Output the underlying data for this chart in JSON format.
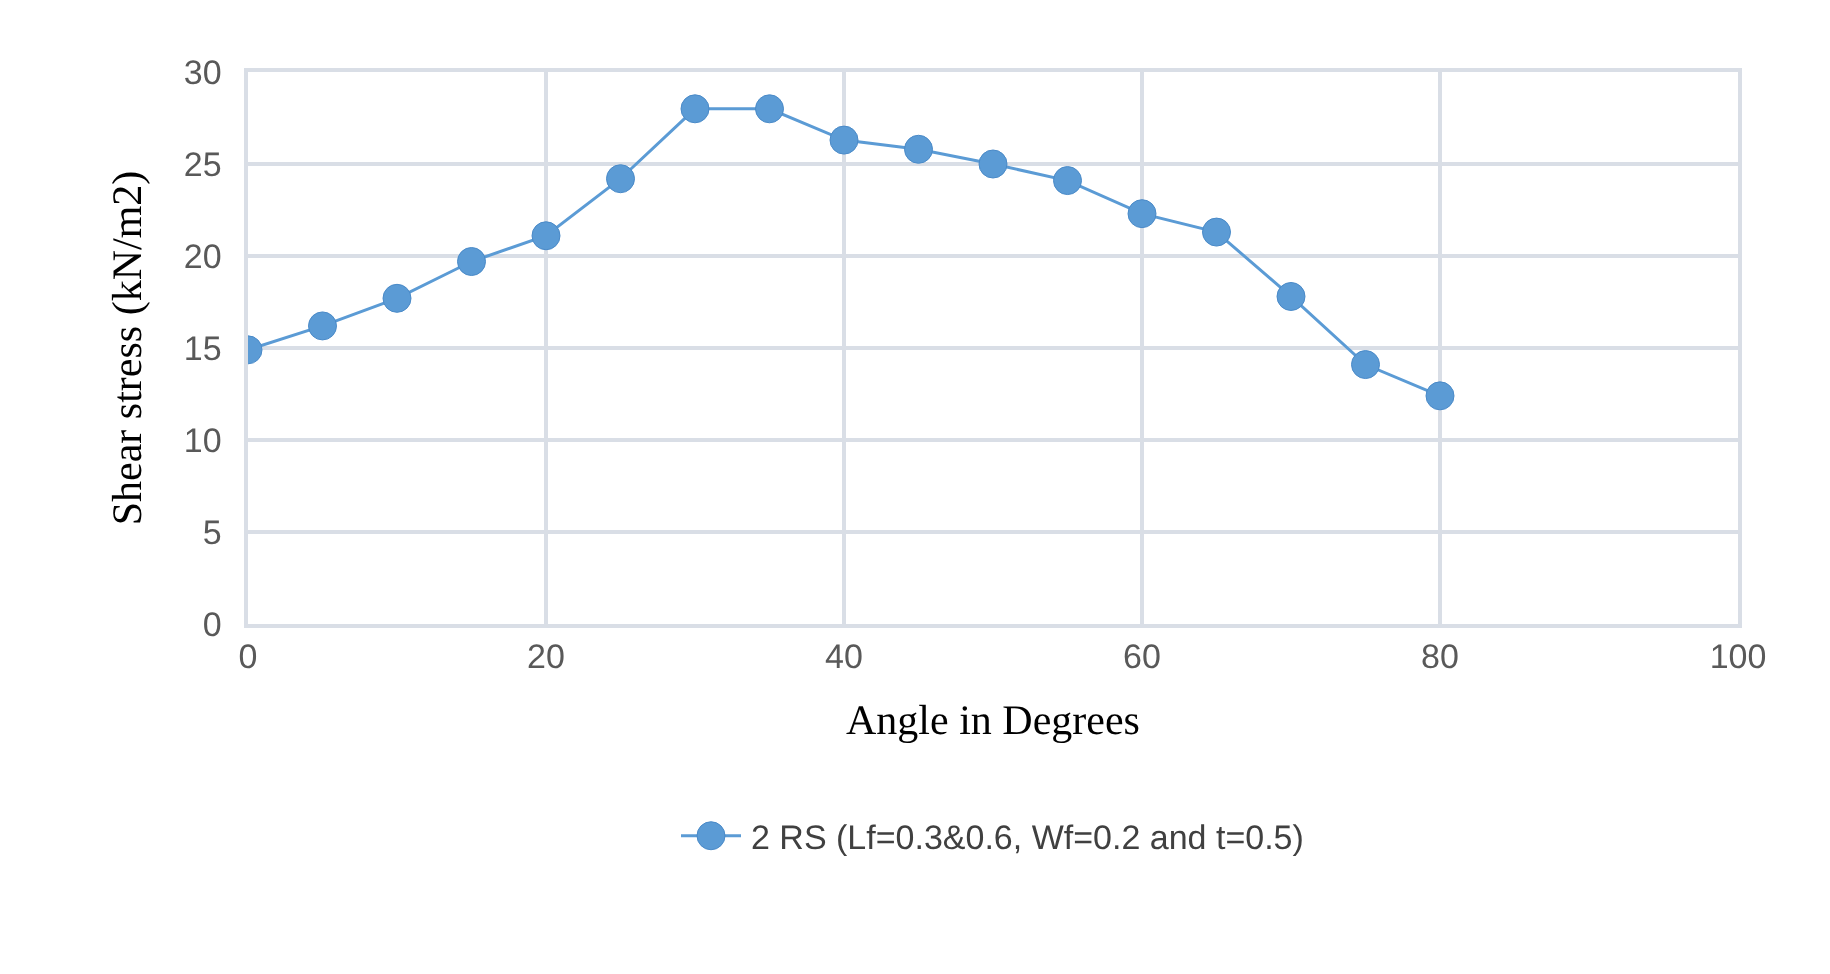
{
  "chart_data": {
    "type": "line",
    "xlabel": "Angle in Degrees",
    "ylabel": "Shear stress (kN/m2)",
    "x": [
      0,
      5,
      10,
      15,
      20,
      25,
      30,
      35,
      40,
      45,
      50,
      55,
      60,
      65,
      70,
      75,
      80
    ],
    "series": [
      {
        "name": "2 RS (Lf=0.3&0.6, Wf=0.2 and t=0.5)",
        "color": "#5b9bd5",
        "values": [
          14.9,
          16.2,
          17.7,
          19.7,
          21.1,
          24.2,
          28.0,
          28.0,
          26.3,
          25.8,
          25.0,
          24.1,
          22.3,
          21.3,
          17.8,
          14.1,
          12.4
        ]
      }
    ],
    "xlim": [
      0,
      100
    ],
    "xticks": [
      0,
      20,
      40,
      60,
      80,
      100
    ],
    "ylim": [
      0,
      30
    ],
    "yticks": [
      0,
      5,
      10,
      15,
      20,
      25,
      30
    ],
    "grid": true,
    "legend": "bottom",
    "marker": "circle",
    "line_style": "solid"
  }
}
